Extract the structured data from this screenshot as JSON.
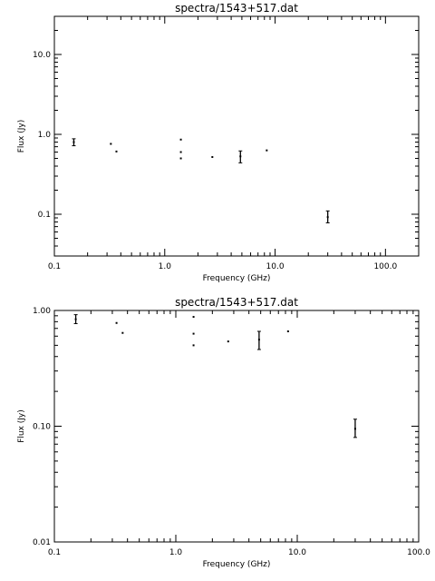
{
  "chart_data": [
    {
      "type": "scatter",
      "title": "spectra/1543+517.dat",
      "xlabel": "Frequency (GHz)",
      "ylabel": "Flux (Jy)",
      "xscale": "log",
      "yscale": "log",
      "xlim": [
        0.1,
        200
      ],
      "ylim": [
        0.03,
        30
      ],
      "x_ticks": [
        0.1,
        1.0,
        10.0,
        100.0
      ],
      "x_tick_labels": [
        "0.1",
        "1.0",
        "10.0",
        "100.0"
      ],
      "y_ticks": [
        0.1,
        1.0,
        10.0
      ],
      "y_tick_labels": [
        "0.1",
        "1.0",
        "10.0"
      ],
      "points": [
        {
          "x": 0.15,
          "y": 0.8,
          "ylo": 0.72,
          "yhi": 0.88
        },
        {
          "x": 0.325,
          "y": 0.76
        },
        {
          "x": 0.365,
          "y": 0.61
        },
        {
          "x": 1.4,
          "y": 0.86
        },
        {
          "x": 1.4,
          "y": 0.6
        },
        {
          "x": 1.4,
          "y": 0.5
        },
        {
          "x": 2.7,
          "y": 0.52
        },
        {
          "x": 4.85,
          "y": 0.53,
          "ylo": 0.44,
          "yhi": 0.62
        },
        {
          "x": 8.4,
          "y": 0.63
        },
        {
          "x": 30,
          "y": 0.092,
          "ylo": 0.078,
          "yhi": 0.11
        }
      ]
    },
    {
      "type": "scatter",
      "title": "spectra/1543+517.dat",
      "xlabel": "Frequency (GHz)",
      "ylabel": "Flux (Jy)",
      "xscale": "log",
      "yscale": "log",
      "xlim": [
        0.1,
        100
      ],
      "ylim": [
        0.01,
        1.0
      ],
      "x_ticks": [
        0.1,
        1.0,
        10.0,
        100.0
      ],
      "x_tick_labels": [
        "0.1",
        "1.0",
        "10.0",
        "100.0"
      ],
      "y_ticks": [
        0.01,
        0.1,
        1.0
      ],
      "y_tick_labels": [
        "0.01",
        "0.10",
        "1.00"
      ],
      "points": [
        {
          "x": 0.15,
          "y": 0.84,
          "ylo": 0.77,
          "yhi": 0.92
        },
        {
          "x": 0.325,
          "y": 0.78
        },
        {
          "x": 0.365,
          "y": 0.64
        },
        {
          "x": 1.4,
          "y": 0.88
        },
        {
          "x": 1.4,
          "y": 0.63
        },
        {
          "x": 1.4,
          "y": 0.5
        },
        {
          "x": 2.7,
          "y": 0.54
        },
        {
          "x": 4.85,
          "y": 0.56,
          "ylo": 0.46,
          "yhi": 0.66
        },
        {
          "x": 8.4,
          "y": 0.66
        },
        {
          "x": 30,
          "y": 0.095,
          "ylo": 0.08,
          "yhi": 0.115
        }
      ]
    }
  ]
}
